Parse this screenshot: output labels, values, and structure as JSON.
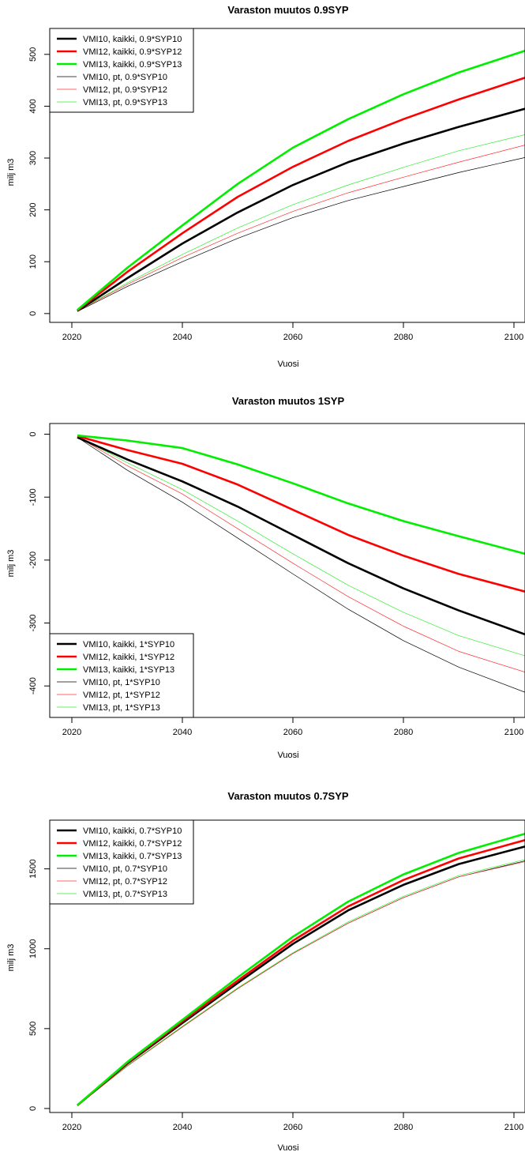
{
  "chart_data": [
    {
      "type": "line",
      "title": "Varaston muutos 0.9SYP",
      "xlabel": "Vuosi",
      "ylabel": "milj m3",
      "xlim": [
        2016,
        2102
      ],
      "ylim": [
        -17,
        550
      ],
      "xticks": [
        2020,
        2040,
        2060,
        2080,
        2100
      ],
      "yticks": [
        0,
        100,
        200,
        300,
        400,
        500
      ],
      "legend_position": "top-left",
      "grid": false,
      "x": [
        2021,
        2030,
        2040,
        2050,
        2060,
        2070,
        2080,
        2090,
        2102
      ],
      "series": [
        {
          "name": "VMI10, kaikki, 0.9*SYP10",
          "color": "#000000",
          "width": 2.6,
          "values": [
            5,
            68,
            135,
            195,
            248,
            292,
            328,
            360,
            395
          ]
        },
        {
          "name": "VMI12, kaikki, 0.9*SYP12",
          "color": "#ff0000",
          "width": 2.6,
          "values": [
            6,
            80,
            155,
            225,
            283,
            333,
            375,
            413,
            455
          ]
        },
        {
          "name": "VMI13, kaikki, 0.9*SYP13",
          "color": "#00ee00",
          "width": 2.6,
          "values": [
            7,
            88,
            170,
            250,
            320,
            375,
            423,
            465,
            507
          ]
        },
        {
          "name": "VMI10, pt, 0.9*SYP10",
          "color": "#000000",
          "width": 0.7,
          "values": [
            4,
            52,
            100,
            145,
            185,
            218,
            245,
            272,
            301
          ]
        },
        {
          "name": "VMI12, pt, 0.9*SYP12",
          "color": "#ff3030",
          "width": 0.7,
          "values": [
            5,
            56,
            108,
            155,
            197,
            233,
            263,
            292,
            325
          ]
        },
        {
          "name": "VMI13, pt, 0.9*SYP13",
          "color": "#33ee33",
          "width": 0.7,
          "values": [
            5,
            59,
            114,
            165,
            210,
            248,
            282,
            314,
            345
          ]
        }
      ]
    },
    {
      "type": "line",
      "title": "Varaston muutos 1SYP",
      "xlabel": "Vuosi",
      "ylabel": "milj m3",
      "xlim": [
        2016,
        2102
      ],
      "ylim": [
        -450,
        17
      ],
      "xticks": [
        2020,
        2040,
        2060,
        2080,
        2100
      ],
      "yticks": [
        0,
        -100,
        -200,
        -300,
        -400
      ],
      "legend_position": "bottom-left",
      "grid": false,
      "x": [
        2021,
        2030,
        2040,
        2050,
        2060,
        2070,
        2080,
        2090,
        2102
      ],
      "series": [
        {
          "name": "VMI10, kaikki, 1*SYP10",
          "color": "#000000",
          "width": 2.6,
          "values": [
            -5,
            -40,
            -75,
            -115,
            -160,
            -205,
            -245,
            -280,
            -318
          ]
        },
        {
          "name": "VMI12, kaikki, 1*SYP12",
          "color": "#ff0000",
          "width": 2.6,
          "values": [
            -3,
            -25,
            -47,
            -80,
            -120,
            -160,
            -193,
            -222,
            -250
          ]
        },
        {
          "name": "VMI13, kaikki, 1*SYP13",
          "color": "#00ee00",
          "width": 2.6,
          "values": [
            -2,
            -10,
            -22,
            -48,
            -78,
            -110,
            -138,
            -162,
            -190
          ]
        },
        {
          "name": "VMI10, pt, 1*SYP10",
          "color": "#000000",
          "width": 0.7,
          "values": [
            -5,
            -57,
            -108,
            -165,
            -222,
            -278,
            -328,
            -370,
            -410
          ]
        },
        {
          "name": "VMI12, pt, 1*SYP12",
          "color": "#ff3030",
          "width": 0.7,
          "values": [
            -4,
            -50,
            -95,
            -150,
            -205,
            -258,
            -305,
            -345,
            -378
          ]
        },
        {
          "name": "VMI13, pt, 1*SYP13",
          "color": "#33ee33",
          "width": 0.7,
          "values": [
            -4,
            -45,
            -88,
            -138,
            -190,
            -240,
            -283,
            -320,
            -352
          ]
        }
      ]
    },
    {
      "type": "line",
      "title": "Varaston muutos 0.7SYP",
      "xlabel": "Vuosi",
      "ylabel": "milj m3",
      "xlim": [
        2016,
        2102
      ],
      "ylim": [
        -25,
        1805
      ],
      "xticks": [
        2020,
        2040,
        2060,
        2080,
        2100
      ],
      "yticks": [
        0,
        500,
        1000,
        1500
      ],
      "legend_position": "top-left",
      "grid": false,
      "x": [
        2021,
        2030,
        2040,
        2050,
        2060,
        2070,
        2080,
        2090,
        2102
      ],
      "series": [
        {
          "name": "VMI10, kaikki, 0.7*SYP10",
          "color": "#000000",
          "width": 2.6,
          "values": [
            20,
            280,
            535,
            785,
            1030,
            1240,
            1400,
            1530,
            1640
          ]
        },
        {
          "name": "VMI12, kaikki, 0.7*SYP12",
          "color": "#ff0000",
          "width": 2.6,
          "values": [
            20,
            285,
            545,
            800,
            1050,
            1265,
            1430,
            1565,
            1680
          ]
        },
        {
          "name": "VMI13, kaikki, 0.7*SYP13",
          "color": "#00ee00",
          "width": 2.6,
          "values": [
            21,
            290,
            555,
            820,
            1075,
            1295,
            1465,
            1600,
            1720
          ]
        },
        {
          "name": "VMI10, pt, 0.7*SYP10",
          "color": "#000000",
          "width": 0.7,
          "values": [
            18,
            265,
            510,
            750,
            970,
            1160,
            1320,
            1450,
            1550
          ]
        },
        {
          "name": "VMI12, pt, 0.7*SYP12",
          "color": "#ff3030",
          "width": 0.7,
          "values": [
            18,
            265,
            510,
            750,
            970,
            1160,
            1320,
            1450,
            1545
          ]
        },
        {
          "name": "VMI13, pt, 0.7*SYP13",
          "color": "#33ee33",
          "width": 0.7,
          "values": [
            18,
            268,
            515,
            755,
            975,
            1168,
            1328,
            1458,
            1558
          ]
        }
      ]
    }
  ]
}
